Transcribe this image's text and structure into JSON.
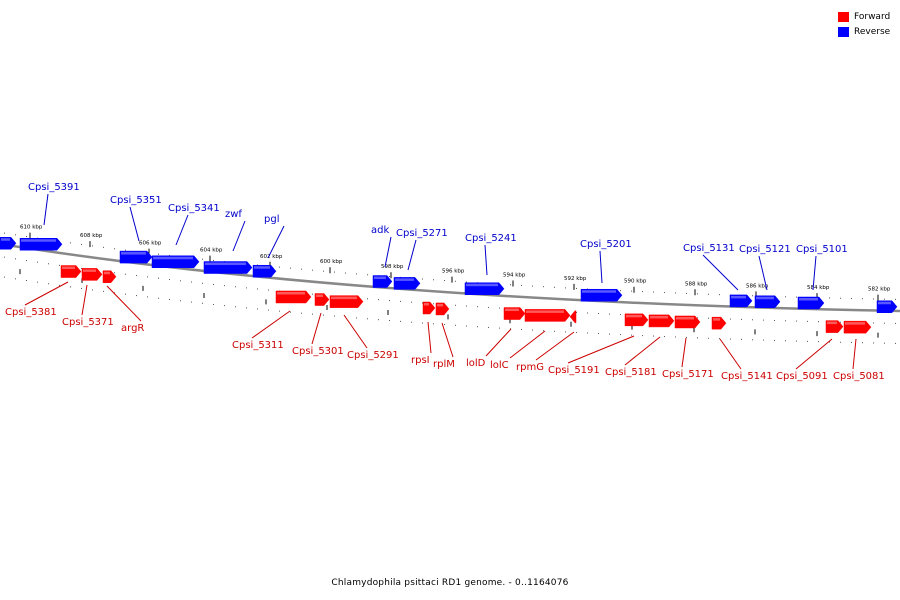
{
  "caption": "Chlamydophila psittaci RD1 genome. - 0..1164076",
  "legend": [
    {
      "label": "Forward",
      "color": "#ff0000"
    },
    {
      "label": "Reverse",
      "color": "#0000ff"
    }
  ],
  "colors": {
    "forward": "#ff0000",
    "reverse": "#0000ff",
    "forward_label": "#cc0000",
    "reverse_label": "#0000cc",
    "backbone": "#888888"
  },
  "ticks": [
    "610 kbp",
    "608 kbp",
    "606 kbp",
    "604 kbp",
    "602 kbp",
    "600 kbp",
    "598 kbp",
    "596 kbp",
    "594 kbp",
    "592 kbp",
    "590 kbp",
    "588 kbp",
    "586 kbp",
    "584 kbp",
    "582 kbp"
  ],
  "reverse_genes": [
    "Cpsi_5391",
    "Cpsi_5351",
    "Cpsi_5341",
    "zwf",
    "pgl",
    "adk",
    "Cpsi_5271",
    "Cpsi_5241",
    "Cpsi_5201",
    "Cpsi_5131",
    "Cpsi_5121",
    "Cpsi_5101"
  ],
  "forward_genes": [
    "Cpsi_5381",
    "Cpsi_5371",
    "argR",
    "Cpsi_5311",
    "Cpsi_5301",
    "Cpsi_5291",
    "rpsI",
    "rplM",
    "lolD",
    "lolC",
    "rpmG",
    "Cpsi_5191",
    "Cpsi_5181",
    "Cpsi_5171",
    "Cpsi_5141",
    "Cpsi_5091",
    "Cpsi_5081"
  ]
}
